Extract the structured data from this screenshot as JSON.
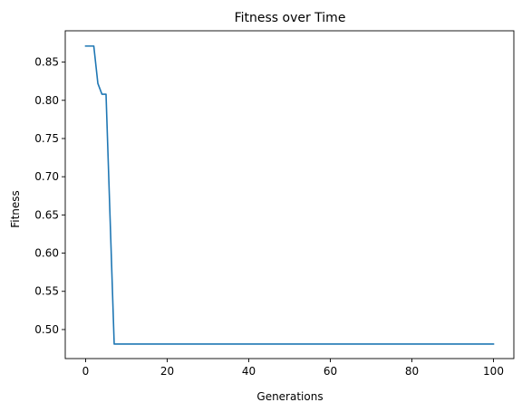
{
  "chart_data": {
    "type": "line",
    "title": "Fitness over Time",
    "xlabel": "Generations",
    "ylabel": "Fitness",
    "xlim": [
      -5,
      105
    ],
    "ylim": [
      0.462,
      0.891
    ],
    "xticks": [
      0,
      20,
      40,
      60,
      80,
      100
    ],
    "yticks": [
      0.5,
      0.55,
      0.6,
      0.65,
      0.7,
      0.75,
      0.8,
      0.85
    ],
    "grid": false,
    "legend": "none",
    "series": [
      {
        "color": "#1f77b4",
        "x": [
          0,
          1,
          2,
          3,
          4,
          5,
          6,
          7,
          8,
          100
        ],
        "y": [
          0.871,
          0.871,
          0.871,
          0.822,
          0.808,
          0.808,
          0.645,
          0.481,
          0.481,
          0.481
        ]
      }
    ]
  }
}
